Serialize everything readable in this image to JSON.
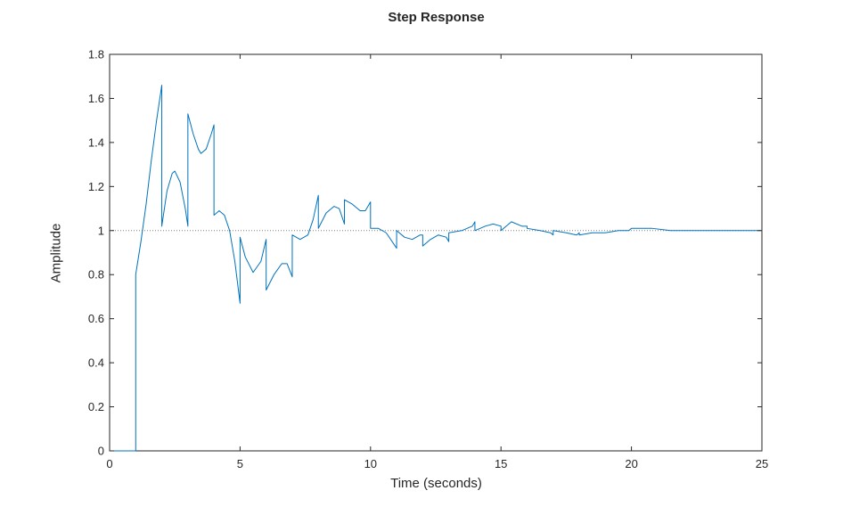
{
  "chart_data": {
    "type": "line",
    "title": "Step Response",
    "xlabel": "Time (seconds)",
    "ylabel": "Amplitude",
    "xlim": [
      0,
      25
    ],
    "ylim": [
      0,
      1.8
    ],
    "xticks": [
      0,
      5,
      10,
      15,
      20,
      25
    ],
    "yticks": [
      0,
      0.2,
      0.4,
      0.6,
      0.8,
      1,
      1.2,
      1.4,
      1.6,
      1.8
    ],
    "grid": false,
    "reference_line": {
      "y": 1,
      "style": "dotted",
      "color": "#808080"
    },
    "series": [
      {
        "color": "#0072bd",
        "x": [
          0,
          1.0,
          1.0,
          1.0,
          1.2,
          1.4,
          1.6,
          1.8,
          2.0,
          2.0,
          2.2,
          2.4,
          2.5,
          2.7,
          2.9,
          3.0,
          3.0,
          3.2,
          3.4,
          3.5,
          3.7,
          3.9,
          4.0,
          4.0,
          4.2,
          4.4,
          4.6,
          4.8,
          5.0,
          5.0,
          5.2,
          5.5,
          5.8,
          6.0,
          6.0,
          6.3,
          6.6,
          6.8,
          7.0,
          7.0,
          7.3,
          7.6,
          7.8,
          8.0,
          8.0,
          8.3,
          8.6,
          8.8,
          9.0,
          9.0,
          9.3,
          9.6,
          9.8,
          10.0,
          10.0,
          10.3,
          10.6,
          11.0,
          11.0,
          11.3,
          11.6,
          11.9,
          12.0,
          12.0,
          12.3,
          12.6,
          12.9,
          13.0,
          13.0,
          13.5,
          13.9,
          14.0,
          14.0,
          14.4,
          14.7,
          15.0,
          15.0,
          15.4,
          15.8,
          16.0,
          16.0,
          16.5,
          16.9,
          17.0,
          17.0,
          17.5,
          17.9,
          18.0,
          18.0,
          18.5,
          18.9,
          19.0,
          19.0,
          19.5,
          19.9,
          20.0,
          20.0,
          20.8,
          21.5,
          22.0,
          23.0,
          24.0,
          25.0
        ],
        "y": [
          0,
          0,
          0.8,
          0.8,
          0.95,
          1.12,
          1.32,
          1.5,
          1.66,
          1.02,
          1.18,
          1.26,
          1.27,
          1.22,
          1.1,
          1.02,
          1.53,
          1.44,
          1.37,
          1.35,
          1.37,
          1.44,
          1.48,
          1.07,
          1.09,
          1.07,
          1.0,
          0.86,
          0.67,
          0.97,
          0.88,
          0.81,
          0.86,
          0.96,
          0.73,
          0.8,
          0.85,
          0.85,
          0.79,
          0.98,
          0.96,
          0.98,
          1.05,
          1.16,
          1.01,
          1.08,
          1.11,
          1.1,
          1.03,
          1.14,
          1.12,
          1.09,
          1.09,
          1.13,
          1.01,
          1.01,
          0.99,
          0.92,
          1.0,
          0.97,
          0.96,
          0.98,
          0.98,
          0.93,
          0.96,
          0.98,
          0.97,
          0.95,
          0.99,
          1.0,
          1.02,
          1.04,
          1.0,
          1.02,
          1.03,
          1.02,
          1.0,
          1.04,
          1.02,
          1.02,
          1.01,
          1.0,
          0.99,
          0.98,
          1.0,
          0.99,
          0.98,
          0.99,
          0.98,
          0.99,
          0.99,
          0.99,
          0.99,
          1.0,
          1.0,
          1.01,
          1.01,
          1.01,
          1.0,
          1.0,
          1.0,
          1.0,
          1.0
        ]
      }
    ]
  }
}
